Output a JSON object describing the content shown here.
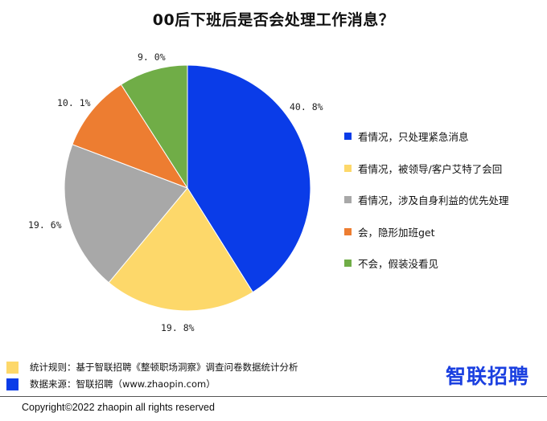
{
  "chart_data": {
    "type": "pie",
    "title": "00后下班后是否会处理工作消息？",
    "slices": [
      {
        "label": "看情况，只处理紧急消息",
        "value": 40.8,
        "display": "40. 8%",
        "color": "#0a3ce8"
      },
      {
        "label": "看情况，被领导/客户艾特了会回",
        "value": 19.8,
        "display": "19. 8%",
        "color": "#fdd86a"
      },
      {
        "label": "看情况，涉及自身利益的优先处理",
        "value": 19.6,
        "display": "19. 6%",
        "color": "#a8a8a8"
      },
      {
        "label": "会，隐形加班get",
        "value": 10.1,
        "display": "10. 1%",
        "color": "#ed7d31"
      },
      {
        "label": "不会，假装没看见",
        "value": 9.0,
        "display": "9. 0%",
        "color": "#70ad47"
      }
    ],
    "legend_position": "right"
  },
  "footer": {
    "note1": "统计规则：基于智联招聘《整顿职场洞察》调查问卷数据统计分析",
    "note1_color": "#fdd86a",
    "note2": "数据来源：智联招聘（www.zhaopin.com）",
    "note2_color": "#0a3ce8",
    "brand": "智联招聘",
    "copyright": "Copyright©2022 zhaopin all rights reserved"
  }
}
